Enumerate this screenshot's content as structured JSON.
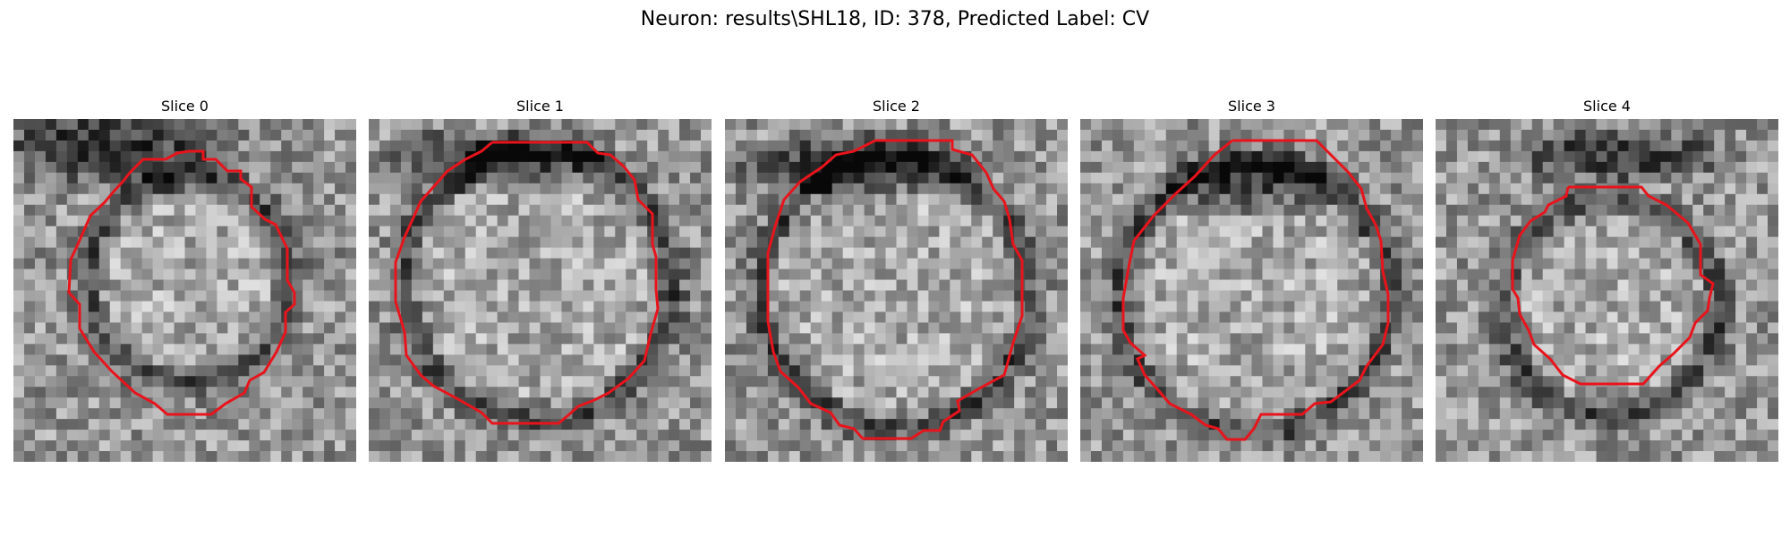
{
  "title": "Neuron: results\\SHL18, ID: 378, Predicted Label: CV",
  "contour_color": "#e8141c",
  "panels": [
    {
      "label": "Slice 0"
    },
    {
      "label": "Slice 1"
    },
    {
      "label": "Slice 2"
    },
    {
      "label": "Slice 3"
    },
    {
      "label": "Slice 4"
    }
  ]
}
